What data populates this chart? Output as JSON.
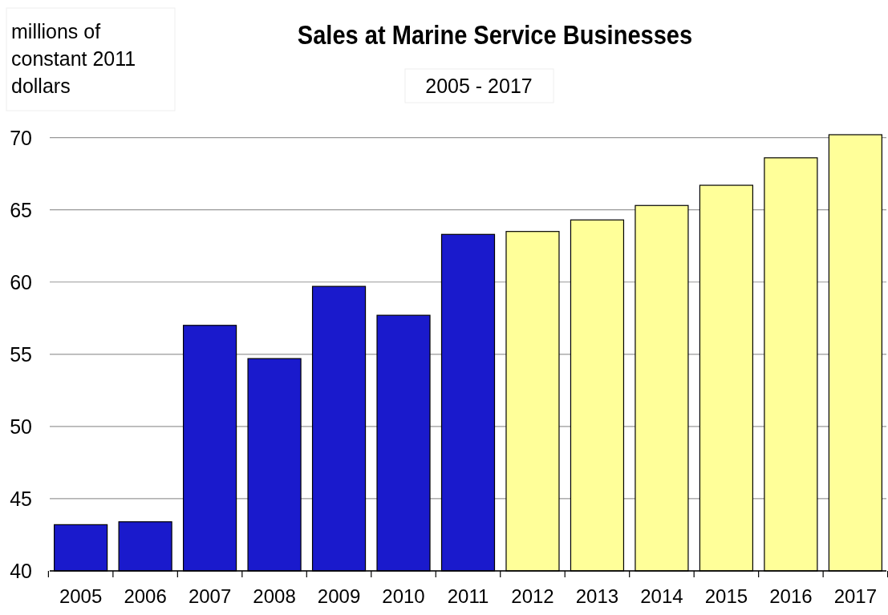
{
  "chart_data": {
    "type": "bar",
    "title": "Sales at Marine Service Businesses",
    "subtitle": "2005 - 2017",
    "ylabel": "millions of constant 2011 dollars",
    "categories": [
      "2005",
      "2006",
      "2007",
      "2008",
      "2009",
      "2010",
      "2011",
      "2012",
      "2013",
      "2014",
      "2015",
      "2016",
      "2017"
    ],
    "values": [
      43.2,
      43.4,
      57.0,
      54.7,
      59.7,
      57.7,
      63.3,
      63.5,
      64.3,
      65.3,
      66.7,
      68.6,
      70.2
    ],
    "colors": [
      "#1a1acc",
      "#1a1acc",
      "#1a1acc",
      "#1a1acc",
      "#1a1acc",
      "#1a1acc",
      "#1a1acc",
      "#ffff99",
      "#ffff99",
      "#ffff99",
      "#ffff99",
      "#ffff99",
      "#ffff99"
    ],
    "ylim": [
      40,
      70.2
    ],
    "yticks": [
      40,
      45,
      50,
      55,
      60,
      65,
      70
    ],
    "grid": "y"
  }
}
